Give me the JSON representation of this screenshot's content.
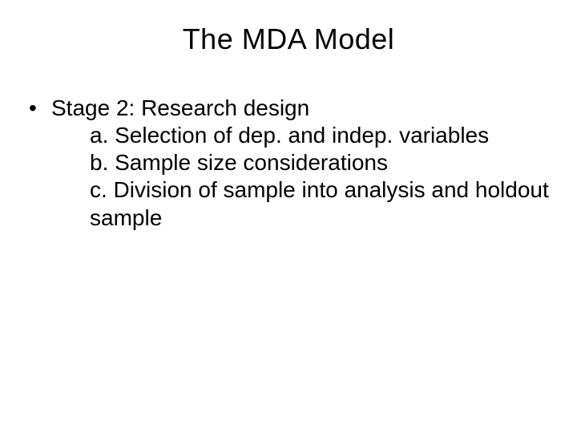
{
  "slide": {
    "title": "The MDA Model",
    "bullet": {
      "label": "Stage 2: Research design",
      "sub": [
        "a. Selection of dep. and indep. variables",
        "b. Sample size considerations",
        "c. Division of sample into analysis and holdout sample"
      ]
    }
  },
  "style": {
    "background_color": "#ffffff",
    "text_color": "#000000",
    "title_fontsize": 36,
    "body_fontsize": 28,
    "font_family": "Arial"
  }
}
